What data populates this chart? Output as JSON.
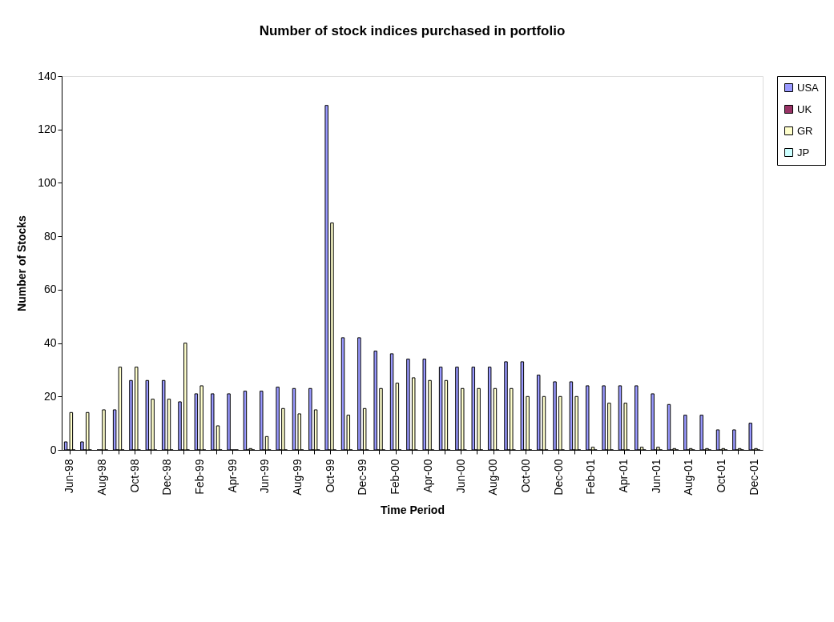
{
  "chart_data": {
    "type": "bar",
    "title": "Number of stock indices purchased in portfolio",
    "xlabel": "Time Period",
    "ylabel": "Number of Stocks",
    "categories": [
      "Jun-98",
      null,
      "Aug-98",
      null,
      "Oct-98",
      null,
      "Dec-98",
      null,
      "Feb-99",
      null,
      "Apr-99",
      null,
      "Jun-99",
      null,
      "Aug-99",
      null,
      "Oct-99",
      null,
      "Dec-99",
      null,
      "Feb-00",
      null,
      "Apr-00",
      null,
      "Jun-00",
      null,
      "Aug-00",
      null,
      "Oct-00",
      null,
      "Dec-00",
      null,
      "Feb-01",
      null,
      "Apr-01",
      null,
      "Jun-01",
      null,
      "Aug-01",
      null,
      "Oct-01",
      null,
      "Dec-01"
    ],
    "series": [
      {
        "name": "USA",
        "color": "#9999ff",
        "values": [
          3,
          3,
          0,
          15,
          26,
          26,
          26,
          18,
          21,
          21,
          21,
          22,
          22,
          23.5,
          23,
          23,
          129,
          42,
          42,
          37,
          36,
          34,
          34,
          31,
          31,
          31,
          31,
          33,
          33,
          28,
          25.5,
          25.5,
          24,
          24,
          24,
          24,
          21,
          17,
          13,
          13,
          7.5,
          7.5,
          10
        ]
      },
      {
        "name": "UK",
        "color": "#993366",
        "values": [
          0,
          0,
          0,
          0,
          0,
          0,
          0,
          0,
          0,
          0,
          0,
          0,
          0,
          0,
          0,
          0,
          0,
          0,
          0,
          0,
          0,
          0,
          0,
          0,
          0,
          0,
          0,
          0,
          0,
          0,
          0,
          0,
          0,
          0,
          0,
          0,
          0,
          0,
          0,
          0,
          0,
          0,
          0
        ]
      },
      {
        "name": "GR",
        "color": "#ffffcc",
        "values": [
          14,
          14,
          15,
          31,
          31,
          19,
          19,
          40,
          24,
          9,
          0,
          0.5,
          5,
          15.5,
          13.5,
          15,
          85,
          13,
          15.5,
          23,
          25,
          27,
          26,
          26,
          23,
          23,
          23,
          23,
          20,
          20,
          20,
          20,
          1,
          17.5,
          17.5,
          1,
          1,
          0.5,
          0.5,
          0.5,
          0.5,
          0.5,
          0.5
        ]
      },
      {
        "name": "JP",
        "color": "#ccffff",
        "values": [
          0,
          0,
          0,
          0,
          0,
          0,
          0,
          0,
          0,
          0,
          0,
          0,
          0,
          0,
          0,
          0,
          0,
          0,
          0,
          0,
          0,
          0,
          0,
          0,
          0,
          0,
          0,
          0,
          0,
          0,
          0,
          0,
          0,
          0,
          0,
          0,
          0,
          0,
          0,
          0,
          0,
          0,
          0
        ]
      }
    ],
    "ylim": [
      0,
      140
    ],
    "yticks": [
      0,
      20,
      40,
      60,
      80,
      100,
      120,
      140
    ],
    "grid": false,
    "legend": "right"
  }
}
